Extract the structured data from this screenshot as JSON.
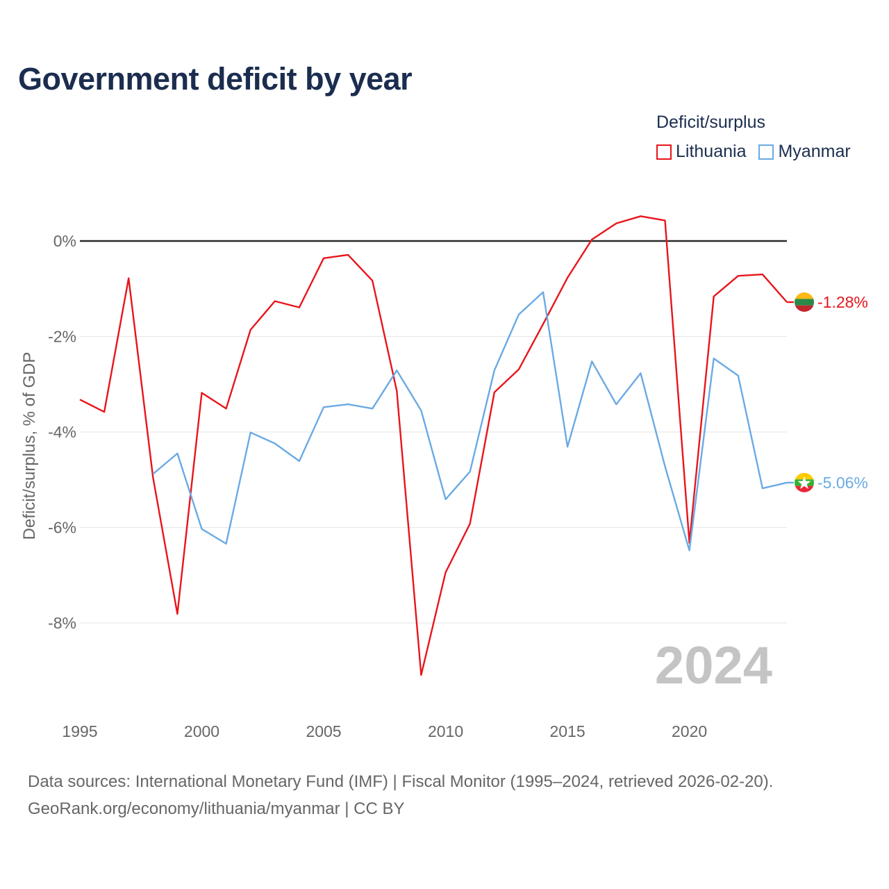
{
  "chart_data": {
    "type": "line",
    "title": "Government deficit by year",
    "ylabel": "Deficit/surplus, % of GDP",
    "xlabel": "",
    "legend_title": "Deficit/surplus",
    "year_watermark": "2024",
    "xlim": [
      1995,
      2024
    ],
    "ylim": [
      -10,
      1
    ],
    "x_ticks": [
      1995,
      2000,
      2005,
      2010,
      2015,
      2020
    ],
    "y_ticks": [
      0,
      -2,
      -4,
      -6,
      -8
    ],
    "y_tick_labels": [
      "0%",
      "-2%",
      "-4%",
      "-6%",
      "-8%"
    ],
    "series": [
      {
        "name": "Lithuania",
        "color": "#e8151b",
        "end_label": "-1.28%",
        "x": [
          1995,
          1996,
          1997,
          1998,
          1999,
          2000,
          2001,
          2002,
          2003,
          2004,
          2005,
          2006,
          2007,
          2008,
          2009,
          2010,
          2011,
          2012,
          2013,
          2014,
          2015,
          2016,
          2017,
          2018,
          2019,
          2020,
          2021,
          2022,
          2023,
          2024
        ],
        "values": [
          -3.32,
          -3.58,
          -0.78,
          -4.95,
          -7.81,
          -3.18,
          -3.51,
          -1.86,
          -1.26,
          -1.39,
          -0.36,
          -0.29,
          -0.83,
          -3.14,
          -9.09,
          -6.94,
          -5.92,
          -3.17,
          -2.69,
          -1.74,
          -0.77,
          0.03,
          0.37,
          0.52,
          0.43,
          -6.32,
          -1.16,
          -0.73,
          -0.7,
          -1.28
        ],
        "flag": "lithuania-flag-icon"
      },
      {
        "name": "Myanmar",
        "color": "#6aaae4",
        "end_label": "-5.06%",
        "x": [
          1998,
          1999,
          2000,
          2001,
          2002,
          2003,
          2004,
          2005,
          2006,
          2007,
          2008,
          2009,
          2010,
          2011,
          2012,
          2013,
          2014,
          2015,
          2016,
          2017,
          2018,
          2019,
          2020,
          2021,
          2022,
          2023,
          2024
        ],
        "values": [
          -4.88,
          -4.45,
          -6.03,
          -6.34,
          -4.01,
          -4.24,
          -4.61,
          -3.48,
          -3.42,
          -3.51,
          -2.71,
          -3.55,
          -5.41,
          -4.83,
          -2.71,
          -1.54,
          -1.07,
          -4.31,
          -2.52,
          -3.42,
          -2.77,
          -4.72,
          -6.48,
          -2.46,
          -2.82,
          -5.18,
          -5.06
        ],
        "flag": "myanmar-flag-icon"
      }
    ]
  },
  "legend": {
    "items": [
      "Lithuania",
      "Myanmar"
    ]
  },
  "footer": {
    "line1": "Data sources: International Monetary Fund (IMF) | Fiscal Monitor (1995–2024, retrieved 2026-02-20).",
    "line2": "GeoRank.org/economy/lithuania/myanmar | CC BY"
  }
}
